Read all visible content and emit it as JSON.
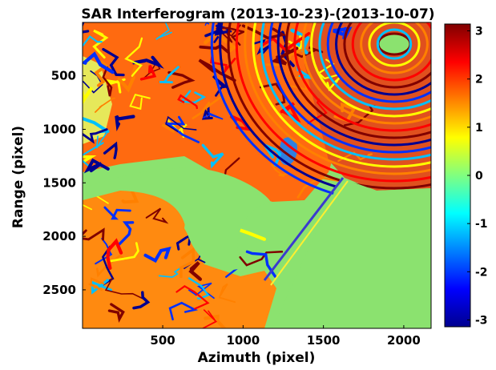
{
  "chart_data": {
    "type": "heatmap",
    "title": "SAR Interferogram (2013-10-23)-(2013-10-07)",
    "xlabel": "Azimuth (pixel)",
    "ylabel": "Range (pixel)",
    "xlim": [
      1,
      2170
    ],
    "ylim": [
      1,
      2860
    ],
    "x_ticks": [
      500,
      1000,
      1500,
      2000
    ],
    "y_ticks": [
      500,
      1000,
      1500,
      2000,
      2500
    ],
    "y_direction": "reverse",
    "colormap": "jet",
    "color_range": [
      -3.14159,
      3.14159
    ],
    "colorbar_ticks": [
      3,
      2,
      1,
      0,
      -1,
      -2,
      -3
    ],
    "grid": false,
    "field_colors": {
      "water_flat": "#8be26f",
      "jet_low": "#00008f",
      "jet_high": "#800000"
    }
  }
}
